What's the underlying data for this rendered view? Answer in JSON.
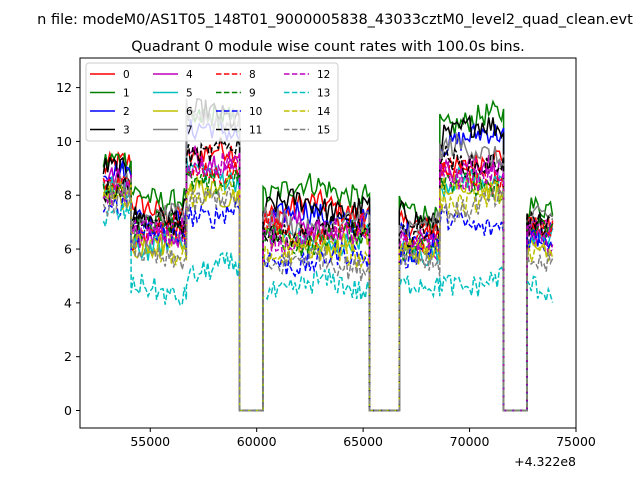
{
  "figure": {
    "suptitle": "n file: modeM0/AS1T05_148T01_9000005838_43033cztM0_level2_quad_clean.evt"
  },
  "chart_data": {
    "type": "line",
    "title": "Quadrant 0 module wise count rates with 100.0s bins.",
    "xlabel": "",
    "ylabel": "",
    "x_offset_label": "+4.322e8",
    "xlim": [
      51700,
      75000
    ],
    "ylim": [
      -0.65,
      13.1
    ],
    "x_ticks": [
      55000,
      60000,
      65000,
      70000,
      75000
    ],
    "x_tick_labels": [
      "55000",
      "60000",
      "65000",
      "70000",
      "75000"
    ],
    "y_ticks": [
      0,
      2,
      4,
      6,
      8,
      10,
      12
    ],
    "y_tick_labels": [
      "0",
      "2",
      "4",
      "6",
      "8",
      "10",
      "12"
    ],
    "grid": false,
    "legend": {
      "position": "top-left",
      "columns": 4
    },
    "segments": [
      {
        "x_start": 52800,
        "x_end": 54100
      },
      {
        "x_start": 54100,
        "x_end": 56700
      },
      {
        "x_start": 56700,
        "x_end": 59200
      },
      {
        "x_start": 59200,
        "x_end": 60300
      },
      {
        "x_start": 60300,
        "x_end": 65300
      },
      {
        "x_start": 65300,
        "x_end": 66700
      },
      {
        "x_start": 66700,
        "x_end": 68600
      },
      {
        "x_start": 68600,
        "x_end": 71600
      },
      {
        "x_start": 71600,
        "x_end": 72700
      },
      {
        "x_start": 72700,
        "x_end": 73900
      }
    ],
    "series": [
      {
        "name": "0",
        "color": "#ff0000",
        "dash": "solid",
        "levels": [
          9.0,
          7.5,
          9.5,
          0,
          7.5,
          0,
          6.7,
          9.2,
          0,
          7.0
        ]
      },
      {
        "name": "1",
        "color": "#008000",
        "dash": "solid",
        "levels": [
          9.1,
          8.0,
          10.7,
          0,
          8.2,
          0,
          7.3,
          10.8,
          0,
          7.8
        ]
      },
      {
        "name": "2",
        "color": "#0000ff",
        "dash": "solid",
        "levels": [
          8.7,
          7.2,
          10.3,
          0,
          7.2,
          0,
          6.5,
          10.1,
          0,
          6.7
        ]
      },
      {
        "name": "3",
        "color": "#000000",
        "dash": "solid",
        "levels": [
          8.8,
          7.3,
          10.9,
          0,
          7.6,
          0,
          7.2,
          10.4,
          0,
          7.2
        ]
      },
      {
        "name": "4",
        "color": "#bf00bf",
        "dash": "solid",
        "levels": [
          8.5,
          6.7,
          9.2,
          0,
          6.8,
          0,
          6.2,
          9.0,
          0,
          6.8
        ]
      },
      {
        "name": "5",
        "color": "#00bfbf",
        "dash": "solid",
        "levels": [
          8.2,
          6.2,
          8.8,
          0,
          6.3,
          0,
          6.0,
          8.4,
          0,
          6.4
        ]
      },
      {
        "name": "6",
        "color": "#bfbf00",
        "dash": "solid",
        "levels": [
          8.0,
          6.1,
          8.2,
          0,
          6.2,
          0,
          6.1,
          8.3,
          0,
          6.0
        ]
      },
      {
        "name": "7",
        "color": "#808080",
        "dash": "solid",
        "levels": [
          8.6,
          7.0,
          11.0,
          0,
          6.9,
          0,
          6.9,
          9.6,
          0,
          7.0
        ]
      },
      {
        "name": "8",
        "color": "#ff0000",
        "dash": "dashed",
        "levels": [
          8.6,
          6.6,
          9.0,
          0,
          6.7,
          0,
          6.4,
          8.7,
          0,
          6.6
        ]
      },
      {
        "name": "9",
        "color": "#008000",
        "dash": "dashed",
        "levels": [
          8.3,
          6.8,
          8.6,
          0,
          6.4,
          0,
          6.2,
          8.4,
          0,
          6.5
        ]
      },
      {
        "name": "10",
        "color": "#0000ff",
        "dash": "dashed",
        "levels": [
          7.8,
          6.3,
          7.4,
          0,
          5.6,
          0,
          5.8,
          7.0,
          0,
          6.2
        ]
      },
      {
        "name": "11",
        "color": "#000000",
        "dash": "dashed",
        "levels": [
          8.4,
          6.9,
          9.7,
          0,
          6.7,
          0,
          6.5,
          9.3,
          0,
          6.8
        ]
      },
      {
        "name": "12",
        "color": "#bf00bf",
        "dash": "dashed",
        "levels": [
          8.1,
          6.5,
          9.1,
          0,
          6.5,
          0,
          6.1,
          8.8,
          0,
          6.3
        ]
      },
      {
        "name": "13",
        "color": "#00bfbf",
        "dash": "dashed",
        "levels": [
          7.2,
          4.4,
          5.2,
          0,
          4.6,
          0,
          4.5,
          4.8,
          0,
          4.6
        ]
      },
      {
        "name": "14",
        "color": "#bfbf00",
        "dash": "dashed",
        "levels": [
          7.9,
          6.0,
          8.0,
          0,
          5.9,
          0,
          5.9,
          7.9,
          0,
          5.9
        ]
      },
      {
        "name": "15",
        "color": "#808080",
        "dash": "dashed",
        "levels": [
          7.6,
          5.8,
          7.7,
          0,
          5.5,
          0,
          5.6,
          7.6,
          0,
          5.7
        ]
      }
    ]
  }
}
